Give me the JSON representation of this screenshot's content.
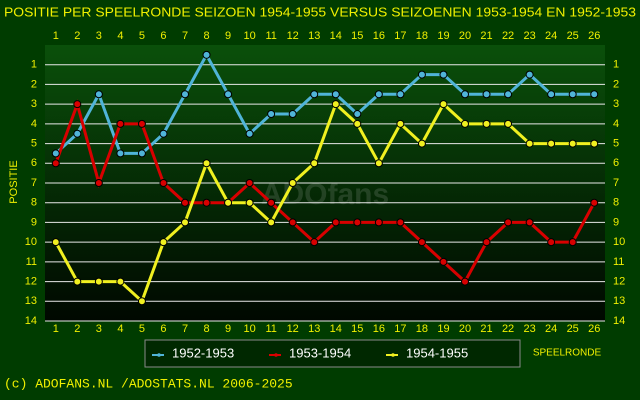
{
  "chart_data": {
    "type": "line",
    "title": "POSITIE PER SPEELRONDE SEIZOEN 1954-1955 VERSUS SEIZOENEN 1953-1954 EN 1952-1953",
    "x_label": "SPEELRONDE",
    "y_label": "POSITIE",
    "watermark": "ADOfans",
    "credit": "(c) ADOFANS.NL /ADOSTATS.NL 2006-2025",
    "x": [
      1,
      2,
      3,
      4,
      5,
      6,
      7,
      8,
      9,
      10,
      11,
      12,
      13,
      14,
      15,
      16,
      17,
      18,
      19,
      20,
      21,
      22,
      23,
      24,
      25,
      26
    ],
    "xlim": [
      0.5,
      26.5
    ],
    "xticks": [
      1,
      2,
      3,
      4,
      5,
      6,
      7,
      8,
      9,
      10,
      11,
      12,
      13,
      14,
      15,
      16,
      17,
      18,
      19,
      20,
      21,
      22,
      23,
      24,
      25,
      26
    ],
    "ylim": [
      0,
      14
    ],
    "y_reversed": true,
    "yticks": [
      1,
      2,
      3,
      4,
      5,
      6,
      7,
      8,
      9,
      10,
      11,
      12,
      13,
      14
    ],
    "grid": true,
    "series": [
      {
        "name": "1952-1953",
        "color": "#50b4d8",
        "values": [
          5.5,
          4.5,
          2.5,
          5.5,
          5.5,
          4.5,
          2.5,
          0.5,
          2.5,
          4.5,
          3.5,
          3.5,
          2.5,
          2.5,
          3.5,
          2.5,
          2.5,
          1.5,
          1.5,
          2.5,
          2.5,
          2.5,
          1.5,
          2.5,
          2.5,
          2.5
        ]
      },
      {
        "name": "1953-1954",
        "color": "#d80000",
        "values": [
          6,
          3,
          7,
          4,
          4,
          7,
          8,
          8,
          8,
          7,
          8,
          9,
          10,
          9,
          9,
          9,
          9,
          10,
          11,
          12,
          10,
          9,
          9,
          10,
          10,
          8
        ]
      },
      {
        "name": "1954-1955",
        "color": "#f0f020",
        "values": [
          10,
          12,
          12,
          12,
          13,
          10,
          9,
          6,
          8,
          8,
          9,
          7,
          6,
          3,
          4,
          6,
          4,
          5,
          3,
          4,
          4,
          4,
          5,
          5,
          5,
          5
        ]
      }
    ]
  }
}
